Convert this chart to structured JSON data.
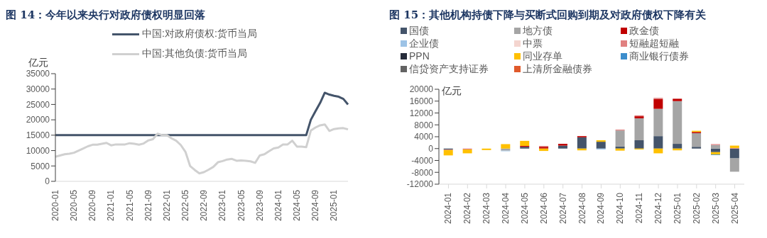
{
  "chart_data": [
    {
      "type": "line",
      "title": "图 14：今年以来央行对政府债权明显回落",
      "ylabel": "亿元",
      "categories": [
        "2020-01",
        null,
        null,
        null,
        "2020-05",
        null,
        null,
        null,
        "2020-09",
        null,
        null,
        null,
        "2021-01",
        null,
        null,
        null,
        "2021-05",
        null,
        null,
        null,
        "2021-09",
        null,
        null,
        null,
        "2022-01",
        null,
        null,
        null,
        "2022-05",
        null,
        null,
        null,
        "2022-09",
        null,
        null,
        null,
        "2023-01",
        null,
        null,
        null,
        "2023-05",
        null,
        null,
        null,
        "2023-09",
        null,
        null,
        null,
        "2024-01",
        null,
        null,
        null,
        "2024-05",
        null,
        null,
        null,
        "2024-09",
        null,
        null,
        null,
        "2025-01",
        null,
        null,
        null
      ],
      "series": [
        {
          "name": "中国:对政府债权:货币当局",
          "color": "#44546a",
          "values": [
            15000,
            15000,
            15000,
            15000,
            15000,
            15000,
            15000,
            15000,
            15000,
            15000,
            15000,
            15000,
            15000,
            15000,
            15000,
            15000,
            15000,
            15000,
            15000,
            15000,
            15000,
            15000,
            15000,
            15000,
            15000,
            15000,
            15000,
            15000,
            15000,
            15000,
            15000,
            15000,
            15000,
            15000,
            15000,
            15000,
            15000,
            15000,
            15000,
            15000,
            15000,
            15000,
            15000,
            15000,
            15000,
            15000,
            15000,
            15000,
            15000,
            15000,
            15000,
            15000,
            15000,
            15000,
            15000,
            20000,
            22800,
            25500,
            28800,
            28200,
            27800,
            27500,
            26800,
            25000
          ]
        },
        {
          "name": "中国:其他负债:货币当局",
          "color": "#d0d0d0",
          "values": [
            8000,
            8400,
            8800,
            9000,
            9300,
            10000,
            10700,
            11400,
            11900,
            11900,
            12200,
            12500,
            11700,
            12000,
            12000,
            12000,
            12400,
            12200,
            11900,
            12300,
            13300,
            13700,
            15500,
            15000,
            15000,
            14000,
            13200,
            11800,
            9600,
            5000,
            3700,
            2600,
            3000,
            3800,
            4700,
            6200,
            6600,
            7100,
            7300,
            6700,
            6800,
            6700,
            6500,
            6000,
            8400,
            8800,
            9800,
            10700,
            11000,
            12000,
            12000,
            13200,
            11300,
            11300,
            11100,
            16500,
            17500,
            18200,
            18500,
            16400,
            17000,
            17200,
            17300,
            16900
          ]
        }
      ],
      "ylim": [
        0,
        35000
      ],
      "yticks": [
        0,
        5000,
        10000,
        15000,
        20000,
        25000,
        30000,
        35000
      ],
      "grid": false,
      "legend": "top",
      "marker": "none"
    },
    {
      "type": "bar",
      "title": "图 15：其他机构持债下降与买断式回购到期及对政府债权下降有关",
      "ylabel": "亿元",
      "stacked": true,
      "categories": [
        "2024-01",
        "2024-02",
        "2024-03",
        "2024-04",
        "2024-05",
        "2024-06",
        "2024-07",
        "2024-08",
        "2024-09",
        "2024-10",
        "2024-11",
        "2024-12",
        "2025-01",
        "2025-02",
        "2025-03",
        "2025-04"
      ],
      "series": [
        {
          "name": "国债",
          "color": "#44546a",
          "values": [
            -300,
            null,
            null,
            null,
            600,
            null,
            1000,
            3800,
            2300,
            700,
            2800,
            4200,
            1600,
            600,
            -1200,
            -3300
          ]
        },
        {
          "name": "地方债",
          "color": "#a5a5a5",
          "values": [
            null,
            null,
            null,
            -700,
            null,
            null,
            null,
            null,
            null,
            5400,
            7400,
            9200,
            14400,
            4600,
            1200,
            -4500
          ]
        },
        {
          "name": "政金债",
          "color": "#c00000",
          "values": [
            null,
            null,
            null,
            null,
            300,
            600,
            600,
            400,
            null,
            null,
            700,
            3300,
            800,
            400,
            null,
            null
          ]
        },
        {
          "name": "企业债",
          "color": "#9dc3e6",
          "values": [
            null,
            null,
            null,
            -200,
            null,
            null,
            null,
            null,
            -300,
            null,
            null,
            null,
            null,
            null,
            null,
            null
          ]
        },
        {
          "name": "中票",
          "color": "#f4d5cf",
          "values": [
            null,
            null,
            null,
            null,
            null,
            null,
            null,
            null,
            null,
            null,
            null,
            null,
            null,
            null,
            null,
            null
          ]
        },
        {
          "name": "短融超短融",
          "color": "#e08080",
          "values": [
            -200,
            -300,
            null,
            null,
            null,
            300,
            null,
            null,
            null,
            300,
            300,
            400,
            null,
            null,
            300,
            200
          ]
        },
        {
          "name": "PPN",
          "color": "#262c3a",
          "values": [
            null,
            null,
            null,
            null,
            null,
            null,
            null,
            null,
            null,
            null,
            null,
            null,
            null,
            null,
            null,
            null
          ]
        },
        {
          "name": "同业存单",
          "color": "#ffc000",
          "values": [
            -1800,
            -1300,
            -500,
            1500,
            1700,
            -800,
            null,
            -600,
            500,
            -700,
            -300,
            -1600,
            -600,
            400,
            -800,
            800
          ]
        },
        {
          "name": "商业银行债券",
          "color": "#3c8dcc",
          "values": [
            null,
            null,
            null,
            null,
            null,
            null,
            null,
            null,
            null,
            null,
            null,
            null,
            null,
            null,
            -200,
            null
          ]
        },
        {
          "name": "信贷资产支持证券",
          "color": "#636363",
          "values": [
            null,
            null,
            null,
            null,
            null,
            null,
            null,
            null,
            null,
            null,
            null,
            null,
            null,
            null,
            null,
            null
          ]
        },
        {
          "name": "上清所金融债券",
          "color": "#e05a2b",
          "values": [
            null,
            null,
            null,
            null,
            null,
            null,
            null,
            null,
            null,
            null,
            null,
            null,
            null,
            null,
            null,
            null
          ]
        }
      ],
      "ylim": [
        -12000,
        20000
      ],
      "yticks": [
        -12000,
        -8000,
        -4000,
        0,
        4000,
        8000,
        12000,
        16000,
        20000
      ],
      "grid": false,
      "legend": "top"
    }
  ]
}
